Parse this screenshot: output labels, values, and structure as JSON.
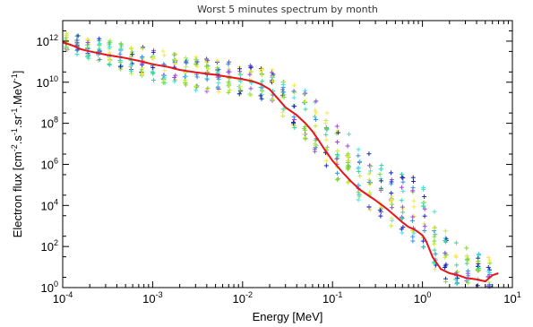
{
  "chart_data": {
    "type": "scatter",
    "title": "Worst 5 minutes spectrum by month",
    "xlabel": "Energy [MeV]",
    "ylabel": {
      "prefix": "Electron flux [cm",
      "sup1": "-2",
      "mid1": ".s",
      "sup2": "-1",
      "mid2": ".sr",
      "sup3": "-1",
      "mid3": ".MeV",
      "sup4": "-1",
      "suffix": "]"
    },
    "x_scale": "log",
    "y_scale": "log",
    "xlim": [
      0.0001,
      10
    ],
    "ylim": [
      1,
      10000000000000
    ],
    "x_ticks": [
      {
        "value": 0.0001,
        "base": "10",
        "exp": "-4"
      },
      {
        "value": 0.001,
        "base": "10",
        "exp": "-3"
      },
      {
        "value": 0.01,
        "base": "10",
        "exp": "-2"
      },
      {
        "value": 0.1,
        "base": "10",
        "exp": "-1"
      },
      {
        "value": 1,
        "base": "10",
        "exp": "0"
      },
      {
        "value": 10,
        "base": "10",
        "exp": "1"
      }
    ],
    "y_ticks": [
      {
        "value": 1,
        "base": "10",
        "exp": "0"
      },
      {
        "value": 100,
        "base": "10",
        "exp": "2"
      },
      {
        "value": 10000,
        "base": "10",
        "exp": "4"
      },
      {
        "value": 1000000,
        "base": "10",
        "exp": "6"
      },
      {
        "value": 100000000,
        "base": "10",
        "exp": "8"
      },
      {
        "value": 10000000000,
        "base": "10",
        "exp": "10"
      },
      {
        "value": 1000000000000,
        "base": "10",
        "exp": "12"
      }
    ],
    "grid": false,
    "legend": "none",
    "colors": {
      "line": "#e8141b",
      "scatter": [
        "#f5e94a",
        "#c8e83a",
        "#7fd63b",
        "#3bd6a0",
        "#4ae0e0",
        "#3a8fe8",
        "#1a2ab8",
        "#9b4ad6"
      ]
    },
    "series": [
      {
        "type": "line",
        "x": [
          0.0001,
          0.00013,
          0.00016,
          0.0002,
          0.0003,
          0.0005,
          0.0007,
          0.001,
          0.0015,
          0.002,
          0.003,
          0.005,
          0.007,
          0.01,
          0.013,
          0.016,
          0.02,
          0.025,
          0.03,
          0.04,
          0.05,
          0.06,
          0.07,
          0.08,
          0.1,
          0.13,
          0.16,
          0.2,
          0.3,
          0.4,
          0.5,
          0.6,
          0.7,
          0.8,
          0.9,
          1.0,
          1.1,
          1.3,
          1.6,
          2.0,
          2.5,
          3.0,
          4.0,
          5.0,
          6.0,
          7.0
        ],
        "y": [
          900000000000,
          600000000000,
          400000000000,
          320000000000,
          220000000000,
          150000000000,
          110000000000,
          75000000000,
          55000000000,
          40000000000,
          30000000000,
          23000000000,
          18000000000,
          14000000000,
          11000000000,
          8000000000,
          4500000000,
          1500000000,
          600000000,
          250000000,
          100000000,
          40000000,
          15000000,
          6000000,
          1500000,
          400000,
          150000,
          60000,
          18000,
          7000,
          3000,
          1500,
          900,
          700,
          500,
          350,
          180,
          30,
          8,
          5,
          4,
          3,
          2.5,
          2,
          4,
          5
        ]
      }
    ],
    "scatter_envelope": {
      "x": [
        0.0001,
        0.0003,
        0.001,
        0.003,
        0.01,
        0.02,
        0.03,
        0.05,
        0.1,
        0.2,
        0.5,
        1.0,
        1.5,
        2.0,
        3.0,
        5.0
      ],
      "y_max": [
        2500000000000,
        1200000000000,
        400000000000,
        180000000000,
        80000000000,
        50000000000,
        20000000000,
        4000000000,
        200000000,
        8000000,
        400000,
        200000,
        2000,
        500,
        100,
        30
      ],
      "y_min": [
        400000000000,
        70000000000,
        12000000000,
        4000000000,
        2500000000,
        1200000000,
        150000000,
        15000000,
        300000,
        15000,
        600,
        100,
        3,
        1.5,
        1,
        1
      ]
    }
  }
}
